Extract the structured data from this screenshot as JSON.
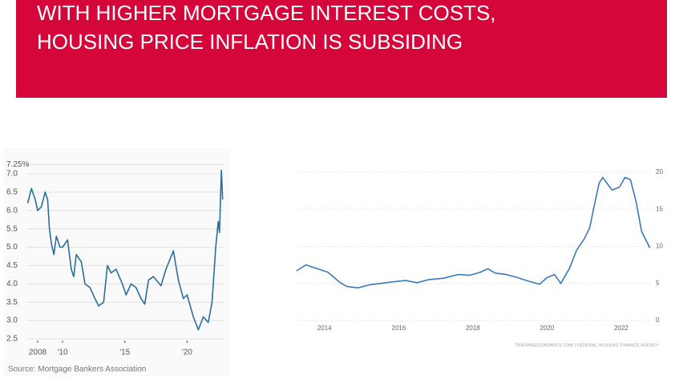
{
  "header": {
    "lines": [
      "WITH HIGHER  MORTGAGE INTEREST   COSTS,",
      "HOUSING PRICE INFLATION IS SUBSIDING"
    ]
  },
  "chart_data": [
    {
      "type": "line",
      "color": "#2a6f9b",
      "grid": true,
      "yaxis_side": "left",
      "source": "Source: Mortgage Bankers Association",
      "xlim": [
        2007.1,
        2023.0
      ],
      "xticks": [
        {
          "value": 2008,
          "label": "2008"
        },
        {
          "value": 2010,
          "label": "'10"
        },
        {
          "value": 2015,
          "label": "'15"
        },
        {
          "value": 2020,
          "label": "'20"
        }
      ],
      "ylim": [
        2.5,
        7.25
      ],
      "yticks": [
        2.5,
        {
          "value": 3,
          "label": "3.0"
        },
        3.5,
        {
          "value": 4,
          "label": "4.0"
        },
        4.5,
        {
          "value": 5,
          "label": "5.0"
        },
        5.5,
        {
          "value": 6,
          "label": "6.0"
        },
        6.5,
        {
          "value": 7,
          "label": "7.0"
        },
        {
          "value": 7.25,
          "label": "7.25%"
        }
      ],
      "x": [
        2007.2,
        2007.5,
        2007.8,
        2008.0,
        2008.3,
        2008.6,
        2008.8,
        2008.95,
        2009.1,
        2009.3,
        2009.5,
        2009.8,
        2010.0,
        2010.4,
        2010.7,
        2010.9,
        2011.1,
        2011.5,
        2011.8,
        2012.2,
        2012.6,
        2012.9,
        2013.3,
        2013.6,
        2013.9,
        2014.3,
        2014.8,
        2015.1,
        2015.5,
        2015.9,
        2016.3,
        2016.6,
        2016.9,
        2017.3,
        2017.9,
        2018.3,
        2018.9,
        2019.3,
        2019.7,
        2020.0,
        2020.5,
        2020.9,
        2021.3,
        2021.7,
        2022.0,
        2022.3,
        2022.5,
        2022.6,
        2022.75,
        2022.85
      ],
      "values": [
        6.2,
        6.6,
        6.3,
        6.0,
        6.1,
        6.5,
        6.3,
        5.5,
        5.1,
        4.8,
        5.3,
        5.0,
        5.0,
        5.2,
        4.4,
        4.2,
        4.8,
        4.6,
        4.0,
        3.9,
        3.6,
        3.4,
        3.5,
        4.5,
        4.3,
        4.4,
        4.0,
        3.7,
        4.0,
        3.9,
        3.6,
        3.45,
        4.1,
        4.2,
        3.95,
        4.4,
        4.9,
        4.1,
        3.6,
        3.7,
        3.1,
        2.75,
        3.1,
        2.95,
        3.5,
        5.0,
        5.7,
        5.4,
        7.1,
        6.3
      ]
    },
    {
      "type": "line",
      "color": "#3a7ab8",
      "grid": true,
      "yaxis_side": "right",
      "source": "TRADINGECONOMICS.COM  |  FEDERAL HOUSING FINANCE AGENCY",
      "xlim": [
        2013.25,
        2022.8
      ],
      "xticks": [
        2014,
        2016,
        2018,
        2020,
        2022
      ],
      "ylim": [
        0,
        20
      ],
      "yticks": [
        0,
        5,
        10,
        15,
        20
      ],
      "x": [
        2013.25,
        2013.5,
        2013.8,
        2014.1,
        2014.4,
        2014.6,
        2014.9,
        2015.2,
        2015.5,
        2015.8,
        2016.2,
        2016.5,
        2016.8,
        2017.2,
        2017.6,
        2017.9,
        2018.2,
        2018.4,
        2018.6,
        2018.9,
        2019.2,
        2019.5,
        2019.8,
        2020.0,
        2020.2,
        2020.37,
        2020.6,
        2020.8,
        2021.0,
        2021.15,
        2021.25,
        2021.4,
        2021.5,
        2021.75,
        2021.95,
        2022.1,
        2022.25,
        2022.4,
        2022.55,
        2022.7,
        2022.77
      ],
      "values": [
        6.7,
        7.5,
        7.0,
        6.5,
        5.2,
        4.6,
        4.4,
        4.8,
        5.0,
        5.2,
        5.4,
        5.1,
        5.5,
        5.7,
        6.2,
        6.1,
        6.5,
        7.0,
        6.4,
        6.2,
        5.8,
        5.3,
        4.9,
        5.8,
        6.2,
        5.0,
        7.0,
        9.5,
        11.0,
        12.5,
        15.0,
        18.5,
        19.3,
        17.6,
        18.0,
        19.3,
        19.0,
        16.0,
        12.0,
        10.5,
        9.8
      ]
    }
  ]
}
